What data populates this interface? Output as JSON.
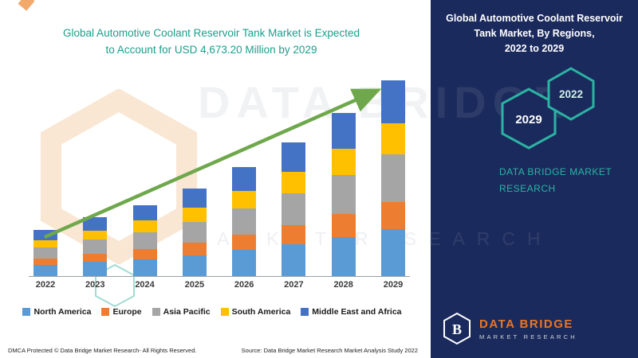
{
  "left": {
    "title_line1": "Global Automotive Coolant Reservoir Tank Market is Expected",
    "title_line2": "to Account for USD 4,673.20 Million by 2029",
    "footer_dmca": "DMCA Protected © Data Bridge Market Research- All Rights Reserved.",
    "footer_source": "Source: Data Bridge Market Research Market Analysis Study 2022"
  },
  "chart_data": {
    "type": "bar",
    "stacked": true,
    "title": "Global Automotive Coolant Reservoir Tank Market is Expected to Account for USD 4,673.20 Million by 2029",
    "unit": "USD Million (estimated from bar heights; 2029 total = 4,673.20 per title)",
    "categories": [
      "2022",
      "2023",
      "2024",
      "2025",
      "2026",
      "2027",
      "2028",
      "2029"
    ],
    "series": [
      {
        "name": "North America",
        "color": "#5B9BD5",
        "values": [
          264,
          336,
          408,
          504,
          624,
          768,
          936,
          1122
        ]
      },
      {
        "name": "Europe",
        "color": "#ED7D31",
        "values": [
          154,
          196,
          238,
          294,
          364,
          448,
          546,
          654
        ]
      },
      {
        "name": "Asia Pacific",
        "color": "#A5A5A5",
        "values": [
          264,
          336,
          408,
          504,
          624,
          768,
          936,
          1122
        ]
      },
      {
        "name": "South America",
        "color": "#FFC000",
        "values": [
          176,
          224,
          272,
          336,
          416,
          512,
          624,
          748
        ]
      },
      {
        "name": "Middle East and Africa",
        "color": "#4472C4",
        "values": [
          242,
          308,
          374,
          462,
          572,
          704,
          858,
          1028
        ]
      }
    ],
    "totals": [
      1100,
      1400,
      1700,
      2100,
      2600,
      3200,
      3900,
      4673.2
    ],
    "ylim": [
      0,
      4700
    ],
    "y_axis_visible": false,
    "grid": false,
    "legend_position": "bottom",
    "annotation": "green upward trend arrow from 2022 to 2029"
  },
  "right": {
    "title_lines": [
      "Global Automotive Coolant Reservoir",
      "Tank Market, By Regions,",
      "2022 to 2029"
    ],
    "hex_back_label": "2029",
    "hex_front_label": "2022",
    "brand_line1": "DATA BRIDGE MARKET",
    "brand_line2": "RESEARCH",
    "logo": {
      "icon_letter": "B",
      "title": "DATA BRIDGE",
      "subtitle": "MARKET RESEARCH"
    }
  },
  "watermark": {
    "big": "DATA BRIDGE",
    "spread": "MARKET RESEARCH"
  },
  "colors": {
    "navy": "#1B2A5C",
    "teal": "#2BB3A3",
    "title_teal": "#1A9E8C",
    "arrow_green": "#6FA84C",
    "logo_orange": "#EE7420"
  }
}
